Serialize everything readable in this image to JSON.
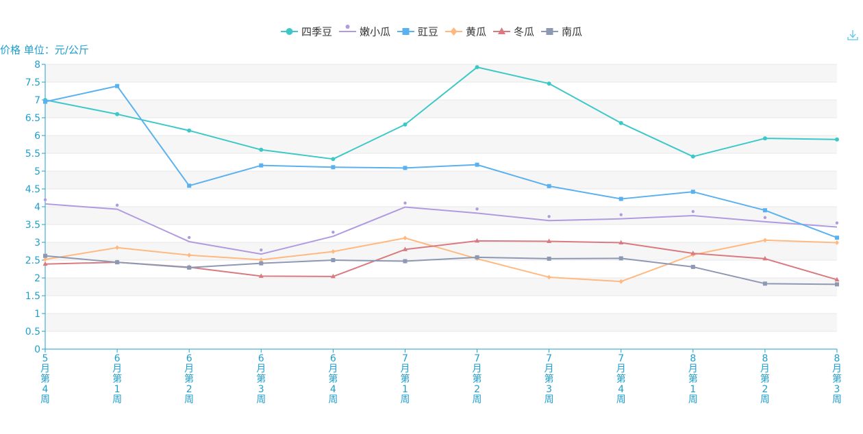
{
  "chart_data": {
    "type": "line",
    "title": "",
    "ylabel": "价格 单位：元/公斤",
    "xlabel": "",
    "categories": [
      "5月第4周",
      "6月第1周",
      "6月第2周",
      "6月第3周",
      "6月第4周",
      "7月第1周",
      "7月第2周",
      "7月第3周",
      "7月第4周",
      "8月第1周",
      "8月第2周",
      "8月第3周"
    ],
    "ylim": [
      0,
      8
    ],
    "yticks": [
      "0",
      "0.5",
      "1",
      "1.5",
      "2",
      "2.5",
      "3",
      "3.5",
      "4",
      "4.5",
      "5",
      "5.5",
      "6",
      "6.5",
      "7",
      "7.5",
      "8"
    ],
    "grid": "horizontal striped bands",
    "legend_position": "top-center",
    "series": [
      {
        "name": "四季豆",
        "color": "#3cc8c8",
        "marker": "circle",
        "values": [
          7.0,
          6.6,
          6.14,
          5.6,
          5.34,
          6.31,
          7.92,
          7.46,
          6.35,
          5.41,
          5.92,
          5.89
        ]
      },
      {
        "name": "嫩小瓜",
        "color": "#b09ae0",
        "marker": "pin",
        "values": [
          4.08,
          3.93,
          3.02,
          2.67,
          3.17,
          3.99,
          3.82,
          3.61,
          3.66,
          3.75,
          3.58,
          3.43
        ]
      },
      {
        "name": "豇豆",
        "color": "#5ab1ef",
        "marker": "square",
        "values": [
          6.95,
          7.39,
          4.59,
          5.16,
          5.11,
          5.09,
          5.18,
          4.58,
          4.22,
          4.42,
          3.9,
          3.13
        ]
      },
      {
        "name": "黄瓜",
        "color": "#ffb980",
        "marker": "diamond",
        "values": [
          2.52,
          2.85,
          2.64,
          2.51,
          2.74,
          3.12,
          2.54,
          2.02,
          1.9,
          2.65,
          3.06,
          2.99
        ]
      },
      {
        "name": "冬瓜",
        "color": "#d87a80",
        "marker": "triangle",
        "values": [
          2.39,
          2.44,
          2.3,
          2.05,
          2.04,
          2.8,
          3.04,
          3.03,
          2.99,
          2.69,
          2.54,
          1.95
        ]
      },
      {
        "name": "南瓜",
        "color": "#8d98b3",
        "marker": "square",
        "values": [
          2.62,
          2.44,
          2.29,
          2.41,
          2.5,
          2.47,
          2.58,
          2.54,
          2.55,
          2.31,
          1.84,
          1.82
        ]
      }
    ]
  },
  "colors": {
    "axis": "#1e9fce",
    "grid": "#e8e8e8",
    "band": "#f6f6f6",
    "download_icon": "#58c6ee"
  },
  "toolbox": {
    "icon": "download-icon"
  }
}
